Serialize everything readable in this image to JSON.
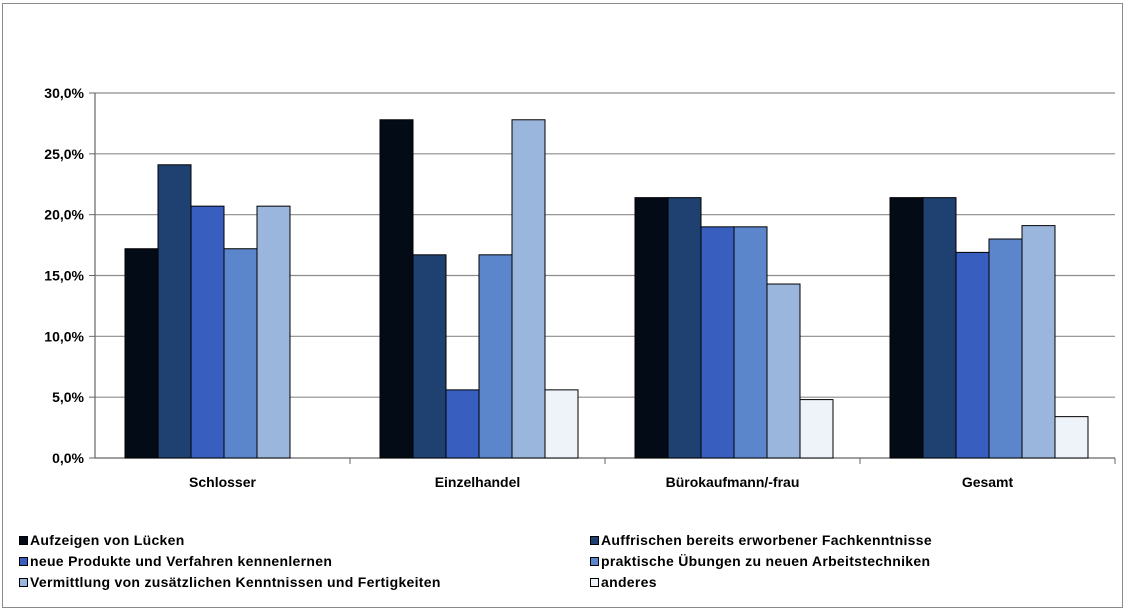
{
  "chart_data": {
    "type": "bar",
    "categories": [
      "Schlosser",
      "Einzelhandel",
      "Bürokaufmann/-frau",
      "Gesamt"
    ],
    "ylim": [
      0,
      30
    ],
    "yticks": [
      "0,0%",
      "5,0%",
      "10,0%",
      "15,0%",
      "20,0%",
      "25,0%",
      "30,0%"
    ],
    "grid": true,
    "legend_position": "bottom",
    "series": [
      {
        "name": "Aufzeigen von  Lücken",
        "color": "#020b16",
        "values": [
          17.2,
          27.8,
          21.4,
          21.4
        ]
      },
      {
        "name": "Auffrischen bereits erworbener Fachkenntnisse",
        "color": "#1f4172",
        "values": [
          24.1,
          16.7,
          21.4,
          21.4
        ]
      },
      {
        "name": "neue Produkte und Verfahren kennenlernen",
        "color": "#385fc0",
        "values": [
          20.7,
          5.6,
          19.0,
          16.9
        ]
      },
      {
        "name": "praktische Übungen zu neuen Arbeitstechniken",
        "color": "#5b86cc",
        "values": [
          17.2,
          16.7,
          19.0,
          18.0
        ]
      },
      {
        "name": "Vermittlung von zusätzlichen Kenntnissen und Fertigkeiten",
        "color": "#9bb6dc",
        "values": [
          20.7,
          27.8,
          14.3,
          19.1
        ]
      },
      {
        "name": "anderes",
        "color": "#eef2f9",
        "values": [
          0,
          5.6,
          4.8,
          3.4
        ]
      }
    ]
  }
}
